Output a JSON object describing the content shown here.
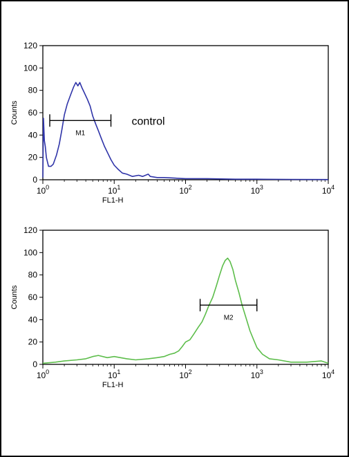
{
  "chart_data": [
    {
      "type": "line",
      "xlabel": "FL1-H",
      "ylabel": "Counts",
      "xscale": "log",
      "xlim": [
        1,
        10000
      ],
      "ylim": [
        0,
        120
      ],
      "yticks": [
        0,
        20,
        40,
        60,
        80,
        100,
        120
      ],
      "xticks": [
        {
          "base": "10",
          "exp": "0"
        },
        {
          "base": "10",
          "exp": "1"
        },
        {
          "base": "10",
          "exp": "2"
        },
        {
          "base": "10",
          "exp": "3"
        },
        {
          "base": "10",
          "exp": "4"
        }
      ],
      "grid": false,
      "color": "#2e33a8",
      "annotation": "control",
      "marker": {
        "label": "M1",
        "x_start": 1.25,
        "x_end": 9.0,
        "y": 53
      },
      "series": [
        {
          "points": [
            [
              1.0,
              2
            ],
            [
              1.02,
              55
            ],
            [
              1.05,
              35
            ],
            [
              1.08,
              30
            ],
            [
              1.12,
              20
            ],
            [
              1.2,
              12
            ],
            [
              1.3,
              12
            ],
            [
              1.4,
              14
            ],
            [
              1.55,
              22
            ],
            [
              1.7,
              32
            ],
            [
              1.85,
              45
            ],
            [
              2.0,
              58
            ],
            [
              2.2,
              68
            ],
            [
              2.45,
              76
            ],
            [
              2.7,
              83
            ],
            [
              2.9,
              87
            ],
            [
              3.1,
              84
            ],
            [
              3.3,
              87
            ],
            [
              3.55,
              82
            ],
            [
              3.8,
              78
            ],
            [
              4.2,
              72
            ],
            [
              4.6,
              66
            ],
            [
              5.0,
              57
            ],
            [
              5.5,
              50
            ],
            [
              6.0,
              44
            ],
            [
              6.6,
              37
            ],
            [
              7.3,
              30
            ],
            [
              8.1,
              24
            ],
            [
              9.0,
              18
            ],
            [
              10.0,
              13
            ],
            [
              11.5,
              9
            ],
            [
              13.0,
              6
            ],
            [
              15.0,
              5
            ],
            [
              18.0,
              3
            ],
            [
              22.0,
              4
            ],
            [
              25.0,
              3
            ],
            [
              30.0,
              5
            ],
            [
              32.0,
              3
            ],
            [
              40.0,
              2
            ],
            [
              50.0,
              2
            ],
            [
              70.0,
              1.5
            ],
            [
              100.0,
              1
            ],
            [
              200.0,
              1
            ],
            [
              500.0,
              0.5
            ],
            [
              1000.0,
              0.5
            ],
            [
              3000.0,
              0.3
            ],
            [
              10000.0,
              0.2
            ]
          ]
        }
      ]
    },
    {
      "type": "line",
      "xlabel": "FL1-H",
      "ylabel": "Counts",
      "xscale": "log",
      "xlim": [
        1,
        10000
      ],
      "ylim": [
        0,
        120
      ],
      "yticks": [
        0,
        20,
        40,
        60,
        80,
        100,
        120
      ],
      "xticks": [
        {
          "base": "10",
          "exp": "0"
        },
        {
          "base": "10",
          "exp": "1"
        },
        {
          "base": "10",
          "exp": "2"
        },
        {
          "base": "10",
          "exp": "3"
        },
        {
          "base": "10",
          "exp": "4"
        }
      ],
      "grid": false,
      "color": "#5cbd4a",
      "marker": {
        "label": "M2",
        "x_start": 160,
        "x_end": 1000,
        "y": 53
      },
      "series": [
        {
          "points": [
            [
              1.0,
              1
            ],
            [
              1.5,
              2
            ],
            [
              2.0,
              3
            ],
            [
              3.0,
              4
            ],
            [
              4.0,
              5
            ],
            [
              5.0,
              7
            ],
            [
              6.0,
              8
            ],
            [
              8.0,
              6
            ],
            [
              10.0,
              7
            ],
            [
              15.0,
              5
            ],
            [
              20.0,
              4
            ],
            [
              30.0,
              5
            ],
            [
              40.0,
              6
            ],
            [
              50.0,
              7
            ],
            [
              60.0,
              9
            ],
            [
              70.0,
              10
            ],
            [
              80.0,
              12
            ],
            [
              90.0,
              16
            ],
            [
              100.0,
              20
            ],
            [
              115.0,
              22
            ],
            [
              130.0,
              27
            ],
            [
              150.0,
              33
            ],
            [
              170.0,
              38
            ],
            [
              190.0,
              45
            ],
            [
              210.0,
              52
            ],
            [
              240.0,
              60
            ],
            [
              270.0,
              70
            ],
            [
              300.0,
              80
            ],
            [
              330.0,
              88
            ],
            [
              360.0,
              93
            ],
            [
              390.0,
              95
            ],
            [
              420.0,
              92
            ],
            [
              460.0,
              85
            ],
            [
              500.0,
              75
            ],
            [
              560.0,
              64
            ],
            [
              620.0,
              53
            ],
            [
              700.0,
              42
            ],
            [
              800.0,
              30
            ],
            [
              900.0,
              22
            ],
            [
              1000.0,
              15
            ],
            [
              1200.0,
              9
            ],
            [
              1500.0,
              5
            ],
            [
              2000.0,
              4
            ],
            [
              3000.0,
              2
            ],
            [
              5000.0,
              2
            ],
            [
              8000.0,
              3
            ],
            [
              10000.0,
              1
            ]
          ]
        }
      ]
    }
  ]
}
